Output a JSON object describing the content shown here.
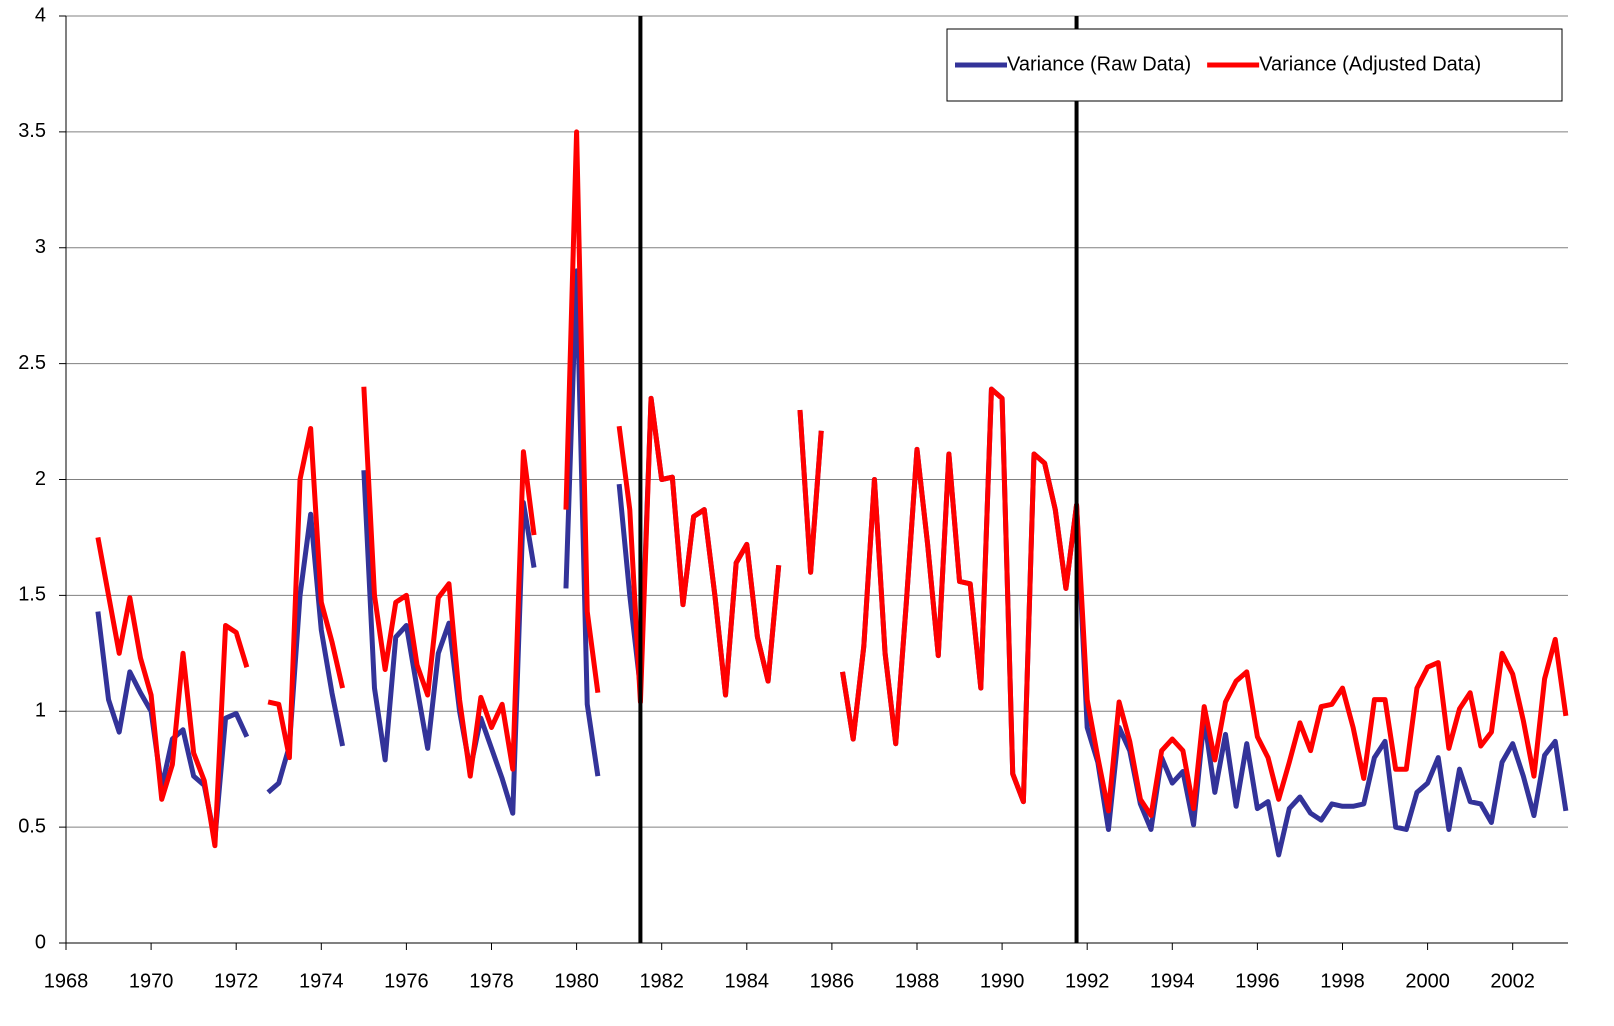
{
  "chart_data": {
    "type": "line",
    "x": [
      1968.75,
      1969,
      1969.25,
      1969.5,
      1969.75,
      1970,
      1970.25,
      1970.5,
      1970.75,
      1971,
      1971.25,
      1971.5,
      1971.75,
      1972,
      1972.25,
      1972.5,
      1972.75,
      1973,
      1973.25,
      1973.5,
      1973.75,
      1974,
      1974.25,
      1974.5,
      1974.75,
      1975,
      1975.25,
      1975.5,
      1975.75,
      1976,
      1976.25,
      1976.5,
      1976.75,
      1977,
      1977.25,
      1977.5,
      1977.75,
      1978,
      1978.25,
      1978.5,
      1978.75,
      1979,
      1979.25,
      1979.5,
      1979.75,
      1980,
      1980.25,
      1980.5,
      1980.75,
      1981,
      1981.25,
      1981.5,
      1981.75,
      1982,
      1982.25,
      1982.5,
      1982.75,
      1983,
      1983.25,
      1983.5,
      1983.75,
      1984,
      1984.25,
      1984.5,
      1984.75,
      1985,
      1985.25,
      1985.5,
      1985.75,
      1986,
      1986.25,
      1986.5,
      1986.75,
      1987,
      1987.25,
      1987.5,
      1987.75,
      1988,
      1988.25,
      1988.5,
      1988.75,
      1989,
      1989.25,
      1989.5,
      1989.75,
      1990,
      1990.25,
      1990.5,
      1990.75,
      1991,
      1991.25,
      1991.5,
      1991.75,
      1992,
      1992.25,
      1992.5,
      1992.75,
      1993,
      1993.25,
      1993.5,
      1993.75,
      1994,
      1994.25,
      1994.5,
      1994.75,
      1995,
      1995.25,
      1995.5,
      1995.75,
      1996,
      1996.25,
      1996.5,
      1996.75,
      1997,
      1997.25,
      1997.5,
      1997.75,
      1998,
      1998.25,
      1998.5,
      1998.75,
      1999,
      1999.25,
      1999.5,
      1999.75,
      2000,
      2000.25,
      2000.5,
      2000.75,
      2001,
      2001.25,
      2001.5,
      2001.75,
      2002,
      2002.25,
      2002.5,
      2002.75,
      2003,
      2003.25
    ],
    "series": [
      {
        "name": "Variance (Raw Data)",
        "color": "#333399",
        "values": [
          1.43,
          1.05,
          0.91,
          1.17,
          1.08,
          1.0,
          0.67,
          0.88,
          0.92,
          0.72,
          0.68,
          0.45,
          0.97,
          0.99,
          0.89,
          null,
          0.65,
          0.69,
          0.85,
          1.5,
          1.85,
          1.35,
          1.08,
          0.85,
          null,
          2.04,
          1.1,
          0.79,
          1.32,
          1.37,
          1.1,
          0.84,
          1.25,
          1.38,
          1.0,
          0.75,
          0.97,
          0.84,
          0.71,
          0.56,
          1.9,
          1.62,
          null,
          null,
          1.53,
          2.9,
          1.03,
          0.72,
          null,
          1.98,
          1.5,
          1.1,
          2.35,
          2.0,
          2.01,
          1.46,
          1.84,
          1.87,
          1.5,
          1.07,
          1.64,
          1.72,
          1.32,
          1.13,
          1.63,
          null,
          2.3,
          1.6,
          2.21,
          null,
          1.17,
          0.88,
          1.28,
          2.0,
          1.25,
          0.86,
          1.47,
          2.13,
          1.72,
          1.24,
          2.11,
          1.56,
          1.55,
          1.1,
          2.39,
          2.35,
          0.73,
          0.61,
          2.11,
          2.07,
          1.87,
          1.53,
          1.89,
          0.93,
          0.78,
          0.49,
          0.93,
          0.83,
          0.6,
          0.49,
          0.8,
          0.69,
          0.74,
          0.51,
          0.97,
          0.65,
          0.9,
          0.59,
          0.86,
          0.58,
          0.61,
          0.38,
          0.58,
          0.63,
          0.56,
          0.53,
          0.6,
          0.59,
          0.59,
          0.6,
          0.8,
          0.87,
          0.5,
          0.49,
          0.65,
          0.69,
          0.8,
          0.49,
          0.75,
          0.61,
          0.6,
          0.52,
          0.78,
          0.86,
          0.72,
          0.55,
          0.81,
          0.87,
          0.57
        ]
      },
      {
        "name": "Variance (Adjusted Data)",
        "color": "#ff0000",
        "values": [
          1.75,
          1.5,
          1.25,
          1.49,
          1.23,
          1.07,
          0.62,
          0.77,
          1.25,
          0.82,
          0.7,
          0.42,
          1.37,
          1.34,
          1.19,
          null,
          1.04,
          1.03,
          0.8,
          2.0,
          2.22,
          1.47,
          1.3,
          1.1,
          null,
          2.4,
          1.5,
          1.18,
          1.47,
          1.5,
          1.2,
          1.07,
          1.49,
          1.55,
          1.05,
          0.72,
          1.06,
          0.93,
          1.03,
          0.75,
          2.12,
          1.76,
          null,
          null,
          1.87,
          3.5,
          1.43,
          1.08,
          null,
          2.23,
          1.87,
          1.04,
          2.35,
          2.0,
          2.01,
          1.46,
          1.84,
          1.87,
          1.5,
          1.07,
          1.64,
          1.72,
          1.32,
          1.13,
          1.63,
          null,
          2.3,
          1.6,
          2.21,
          null,
          1.17,
          0.88,
          1.28,
          2.0,
          1.25,
          0.86,
          1.47,
          2.13,
          1.72,
          1.24,
          2.11,
          1.56,
          1.55,
          1.1,
          2.39,
          2.35,
          0.73,
          0.61,
          2.11,
          2.07,
          1.87,
          1.53,
          1.89,
          1.05,
          0.8,
          0.57,
          1.04,
          0.87,
          0.62,
          0.55,
          0.83,
          0.88,
          0.83,
          0.58,
          1.02,
          0.79,
          1.04,
          1.13,
          1.17,
          0.89,
          0.8,
          0.62,
          0.78,
          0.95,
          0.83,
          1.02,
          1.03,
          1.1,
          0.93,
          0.71,
          1.05,
          1.05,
          0.75,
          0.75,
          1.1,
          1.19,
          1.21,
          0.84,
          1.01,
          1.08,
          0.85,
          0.91,
          1.25,
          1.16,
          0.96,
          0.72,
          1.14,
          1.31,
          0.98
        ]
      }
    ],
    "xlim": [
      1968,
      2003.3
    ],
    "xticks": [
      1968,
      1970,
      1972,
      1974,
      1976,
      1978,
      1980,
      1982,
      1984,
      1986,
      1988,
      1990,
      1992,
      1994,
      1996,
      1998,
      2000,
      2002
    ],
    "ylim": [
      0,
      4
    ],
    "yticks": [
      0,
      0.5,
      1,
      1.5,
      2,
      2.5,
      3,
      3.5,
      4
    ],
    "grid": true,
    "vlines": [
      1981.5,
      1991.75
    ],
    "legend": "top-right"
  }
}
